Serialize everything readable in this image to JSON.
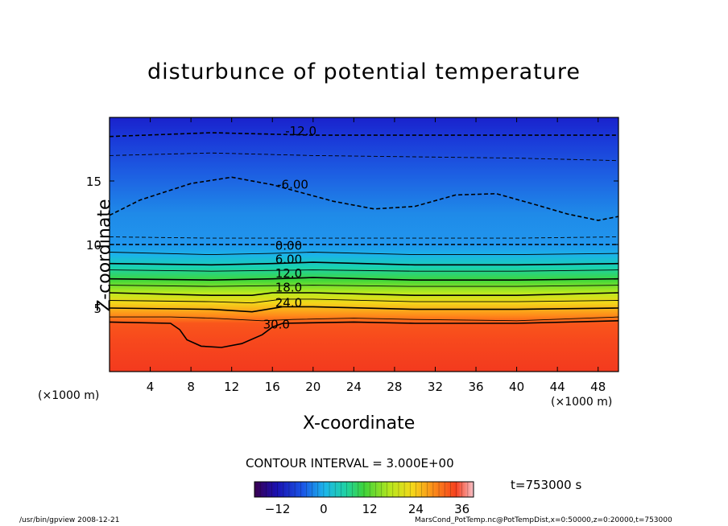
{
  "chart_data": {
    "type": "heatmap",
    "title": "disturbunce of potential temperature",
    "xlabel": "X-coordinate",
    "ylabel": "Z-coordinate",
    "x_unit_label": "(×1000 m)",
    "xlim": [
      0,
      50
    ],
    "ylim": [
      0,
      20
    ],
    "x_ticks": [
      4,
      8,
      12,
      16,
      20,
      24,
      28,
      32,
      36,
      40,
      44,
      48
    ],
    "y_ticks": [
      5,
      10,
      15
    ],
    "contour_interval_label": "CONTOUR INTERVAL = 3.000E+00",
    "contour_labels": [
      {
        "text": "-12.0",
        "x": 18.8,
        "z": 18.6
      },
      {
        "text": "-6.00",
        "x": 18,
        "z": 14.4
      },
      {
        "text": "0.00",
        "x": 17.6,
        "z": 9.6
      },
      {
        "text": "6.00",
        "x": 17.6,
        "z": 8.5
      },
      {
        "text": "12.0",
        "x": 17.6,
        "z": 7.4
      },
      {
        "text": "18.0",
        "x": 17.6,
        "z": 6.3
      },
      {
        "text": "24.0",
        "x": 17.6,
        "z": 5.1
      },
      {
        "text": "30.0",
        "x": 16.4,
        "z": 3.4
      }
    ],
    "contour_levels": [
      {
        "value": -12,
        "style": "dashed",
        "pts": [
          [
            0,
            18.5
          ],
          [
            10,
            18.8
          ],
          [
            20,
            18.6
          ],
          [
            30,
            18.6
          ],
          [
            40,
            18.6
          ],
          [
            50,
            18.6
          ]
        ]
      },
      {
        "value": -9,
        "style": "dashed",
        "pts": [
          [
            0,
            17
          ],
          [
            10,
            17.2
          ],
          [
            20,
            17
          ],
          [
            30,
            16.9
          ],
          [
            40,
            16.8
          ],
          [
            50,
            16.6
          ]
        ]
      },
      {
        "value": -6,
        "style": "dashed",
        "pts": [
          [
            0,
            12.3
          ],
          [
            3,
            13.5
          ],
          [
            8,
            14.8
          ],
          [
            12,
            15.3
          ],
          [
            16,
            14.7
          ],
          [
            22,
            13.4
          ],
          [
            26,
            12.8
          ],
          [
            30,
            13
          ],
          [
            34,
            13.9
          ],
          [
            38,
            14
          ],
          [
            42,
            13.1
          ],
          [
            45,
            12.4
          ],
          [
            48,
            11.9
          ],
          [
            50,
            12.2
          ]
        ]
      },
      {
        "value": -3,
        "style": "dashed",
        "pts": [
          [
            0,
            10.6
          ],
          [
            10,
            10.5
          ],
          [
            20,
            10.5
          ],
          [
            30,
            10.5
          ],
          [
            40,
            10.5
          ],
          [
            50,
            10.6
          ]
        ]
      },
      {
        "value": 0,
        "style": "dashed",
        "pts": [
          [
            0,
            10
          ],
          [
            10,
            10
          ],
          [
            20,
            10
          ],
          [
            30,
            10
          ],
          [
            40,
            10
          ],
          [
            50,
            10
          ]
        ]
      },
      {
        "value": 3,
        "style": "solid",
        "pts": [
          [
            0,
            9.4
          ],
          [
            10,
            9.2
          ],
          [
            16,
            9.3
          ],
          [
            20,
            9.4
          ],
          [
            30,
            9.2
          ],
          [
            40,
            9.2
          ],
          [
            50,
            9.3
          ]
        ]
      },
      {
        "value": 6,
        "style": "solid",
        "pts": [
          [
            0,
            8.5
          ],
          [
            10,
            8.4
          ],
          [
            16,
            8.5
          ],
          [
            20,
            8.6
          ],
          [
            30,
            8.4
          ],
          [
            40,
            8.4
          ],
          [
            50,
            8.5
          ]
        ]
      },
      {
        "value": 9,
        "style": "solid",
        "pts": [
          [
            0,
            8
          ],
          [
            10,
            7.9
          ],
          [
            20,
            8
          ],
          [
            30,
            7.9
          ],
          [
            40,
            7.9
          ],
          [
            50,
            8
          ]
        ]
      },
      {
        "value": 12,
        "style": "solid",
        "pts": [
          [
            0,
            7.3
          ],
          [
            10,
            7.2
          ],
          [
            16,
            7.3
          ],
          [
            20,
            7.4
          ],
          [
            30,
            7.2
          ],
          [
            40,
            7.2
          ],
          [
            50,
            7.3
          ]
        ]
      },
      {
        "value": 15,
        "style": "solid",
        "pts": [
          [
            0,
            6.8
          ],
          [
            10,
            6.7
          ],
          [
            20,
            6.8
          ],
          [
            30,
            6.7
          ],
          [
            40,
            6.7
          ],
          [
            50,
            6.8
          ]
        ]
      },
      {
        "value": 18,
        "style": "solid",
        "pts": [
          [
            0,
            6.2
          ],
          [
            10,
            6
          ],
          [
            14,
            6
          ],
          [
            16,
            6.2
          ],
          [
            20,
            6.2
          ],
          [
            30,
            6
          ],
          [
            40,
            6
          ],
          [
            50,
            6.2
          ]
        ]
      },
      {
        "value": 21,
        "style": "solid",
        "pts": [
          [
            0,
            5.6
          ],
          [
            10,
            5.5
          ],
          [
            14,
            5.4
          ],
          [
            17,
            5.7
          ],
          [
            20,
            5.7
          ],
          [
            30,
            5.5
          ],
          [
            40,
            5.5
          ],
          [
            50,
            5.6
          ]
        ]
      },
      {
        "value": 24,
        "style": "solid",
        "pts": [
          [
            0,
            5
          ],
          [
            10,
            4.9
          ],
          [
            14,
            4.7
          ],
          [
            17,
            5.1
          ],
          [
            20,
            5.1
          ],
          [
            30,
            4.9
          ],
          [
            40,
            4.9
          ],
          [
            50,
            5
          ]
        ]
      },
      {
        "value": 27,
        "style": "solid",
        "pts": [
          [
            0,
            4.3
          ],
          [
            6,
            4.3
          ],
          [
            10,
            4.2
          ],
          [
            15,
            4
          ],
          [
            18,
            4.1
          ],
          [
            24,
            4.2
          ],
          [
            30,
            4.1
          ],
          [
            40,
            4
          ],
          [
            50,
            4.3
          ]
        ]
      },
      {
        "value": 30,
        "style": "solid",
        "pts": [
          [
            0,
            3.9
          ],
          [
            6,
            3.8
          ],
          [
            6.9,
            3.3
          ],
          [
            7.6,
            2.5
          ],
          [
            9,
            2
          ],
          [
            11,
            1.9
          ],
          [
            13,
            2.2
          ],
          [
            15,
            2.9
          ],
          [
            16,
            3.5
          ],
          [
            17,
            3.8
          ],
          [
            24,
            3.9
          ],
          [
            30,
            3.8
          ],
          [
            40,
            3.8
          ],
          [
            50,
            4
          ]
        ]
      }
    ],
    "colorbar": {
      "ticks": [
        -12,
        0,
        12,
        24,
        36
      ],
      "range": [
        -18,
        39
      ]
    }
  },
  "time_label": "t=753000 s",
  "footer": {
    "left": "/usr/bin/gpview   2008-12-21",
    "right": "MarsCond_PotTemp.nc@PotTempDist,x=0:50000,z=0:20000,t=753000"
  }
}
